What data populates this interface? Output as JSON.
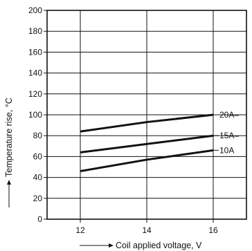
{
  "chart_data": {
    "type": "line",
    "xlabel": "Coil applied voltage, V",
    "ylabel": "Temperature rise, °C",
    "xlim": [
      11,
      17
    ],
    "ylim": [
      0,
      200
    ],
    "x_ticks": [
      12,
      14,
      16
    ],
    "y_ticks": [
      0,
      20,
      40,
      60,
      80,
      100,
      120,
      140,
      160,
      180,
      200
    ],
    "grid": true,
    "legend": "inline labels at right end of each line",
    "series": [
      {
        "name": "20A",
        "x": [
          12,
          14,
          16
        ],
        "values": [
          84,
          93,
          100
        ]
      },
      {
        "name": "15A",
        "x": [
          12,
          14,
          16
        ],
        "values": [
          64,
          72,
          80
        ]
      },
      {
        "name": "10A",
        "x": [
          12,
          14,
          16
        ],
        "values": [
          46,
          57,
          66
        ]
      }
    ]
  }
}
